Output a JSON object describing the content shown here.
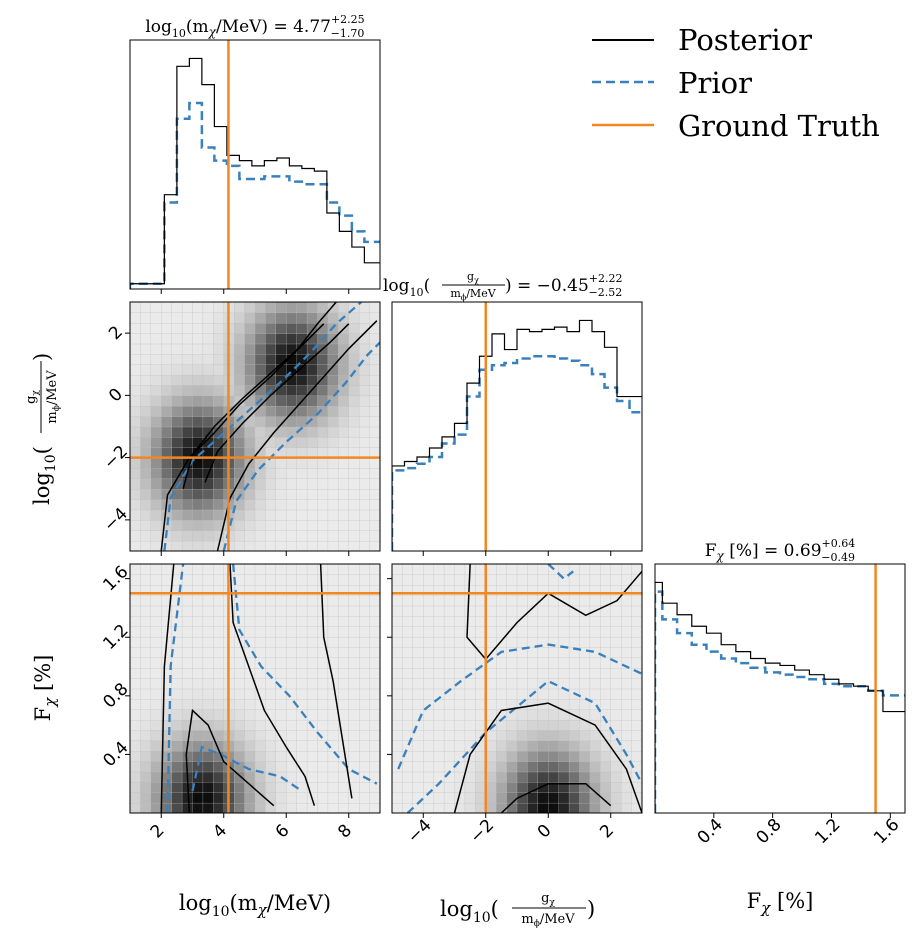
{
  "colors": {
    "posterior": "#000000",
    "prior": "#3a80bd",
    "ground_truth": "#f28722",
    "panel_edge": "#000000"
  },
  "legend": {
    "placement": "top-right",
    "items": [
      {
        "label": "Posterior",
        "style": "solid",
        "color": "#000000"
      },
      {
        "label": "Prior",
        "style": "dashed",
        "color": "#3a80bd"
      },
      {
        "label": "Ground Truth",
        "style": "solid",
        "color": "#f28722"
      }
    ]
  },
  "titles": {
    "m": {
      "left": "log",
      "sub": "10",
      "mid": "(m",
      "greek": "χ",
      "right": "/MeV) = 4.77",
      "sup": "+2.25",
      "inf": "−1.70"
    },
    "g": {
      "left": "log",
      "sub": "10",
      "frac_num": "g",
      "frac_num_sub": "χ",
      "frac_den": "m",
      "frac_den_sub": "ϕ",
      "frac_den_unit": "/MeV",
      "right": ") = −0.45",
      "sup": "+2.22",
      "inf": "−2.52"
    },
    "f": {
      "left": "F",
      "greek": "χ",
      "right": " [%] = 0.69",
      "sup": "+0.64",
      "inf": "−0.49"
    }
  },
  "axis_labels": {
    "m": {
      "left": "log",
      "sub": "10",
      "mid": "(m",
      "greek": "χ",
      "right": "/MeV)"
    },
    "g": {
      "left": "log",
      "sub": "10",
      "open": "(",
      "frac_num": "g",
      "frac_num_sub": "χ",
      "frac_den": "m",
      "frac_den_sub": "ϕ",
      "frac_den_unit": "/MeV",
      "close": ")"
    },
    "f": {
      "left": "F",
      "greek": "χ",
      "right": " [%]"
    }
  },
  "chart_data": {
    "type": "corner",
    "parameters": [
      {
        "key": "m",
        "range": [
          1,
          9
        ],
        "ticks": [
          2,
          4,
          6,
          8
        ],
        "tick_labels": [
          "2",
          "4",
          "6",
          "8"
        ],
        "truth": 4.15
      },
      {
        "key": "g",
        "range": [
          -5,
          3
        ],
        "ticks": [
          -4,
          -2,
          0,
          2
        ],
        "tick_labels": [
          "−4",
          "−2",
          "0",
          "2"
        ],
        "truth": -2.0
      },
      {
        "key": "f",
        "range": [
          0,
          1.7
        ],
        "ticks": [
          0.4,
          0.8,
          1.2,
          1.6
        ],
        "tick_labels": [
          "0.4",
          "0.8",
          "1.2",
          "1.6"
        ],
        "truth": 1.5
      }
    ],
    "histograms": {
      "m": {
        "bin_edges": [
          1.0,
          2.1,
          2.5,
          2.9,
          3.3,
          3.7,
          4.1,
          4.5,
          4.9,
          5.3,
          5.7,
          6.1,
          6.5,
          6.9,
          7.3,
          7.7,
          8.1,
          8.5,
          8.9,
          9.0
        ],
        "posterior": [
          0.02,
          0.36,
          0.85,
          0.88,
          0.78,
          0.62,
          0.51,
          0.49,
          0.47,
          0.49,
          0.5,
          0.47,
          0.46,
          0.45,
          0.29,
          0.22,
          0.16,
          0.1,
          0.1
        ],
        "prior": [
          0.02,
          0.33,
          0.65,
          0.71,
          0.54,
          0.49,
          0.47,
          0.42,
          0.42,
          0.43,
          0.43,
          0.41,
          0.4,
          0.4,
          0.33,
          0.28,
          0.22,
          0.18,
          0.18
        ]
      },
      "g": {
        "bin_edges": [
          -5.0,
          -4.6,
          -4.2,
          -3.8,
          -3.4,
          -3.0,
          -2.6,
          -2.2,
          -1.8,
          -1.4,
          -1.0,
          -0.6,
          -0.2,
          0.2,
          0.6,
          1.0,
          1.4,
          1.8,
          2.2,
          2.6,
          3.0
        ],
        "posterior": [
          0.38,
          0.4,
          0.42,
          0.46,
          0.51,
          0.57,
          0.75,
          0.87,
          0.97,
          0.9,
          0.99,
          0.98,
          0.99,
          1.0,
          0.98,
          1.03,
          0.98,
          0.91,
          0.69,
          0.69
        ],
        "prior": [
          0.36,
          0.37,
          0.39,
          0.42,
          0.48,
          0.52,
          0.69,
          0.81,
          0.83,
          0.84,
          0.86,
          0.87,
          0.87,
          0.86,
          0.85,
          0.83,
          0.79,
          0.73,
          0.67,
          0.62
        ]
      },
      "f": {
        "bin_edges": [
          0.0,
          0.05,
          0.15,
          0.25,
          0.35,
          0.45,
          0.55,
          0.65,
          0.75,
          0.85,
          0.95,
          1.05,
          1.15,
          1.25,
          1.35,
          1.45,
          1.55,
          1.65,
          1.7
        ],
        "posterior": [
          1.0,
          0.91,
          0.86,
          0.81,
          0.78,
          0.73,
          0.7,
          0.67,
          0.65,
          0.64,
          0.62,
          0.6,
          0.58,
          0.56,
          0.55,
          0.53,
          0.44,
          0.44
        ],
        "prior": [
          0.96,
          0.84,
          0.78,
          0.73,
          0.7,
          0.67,
          0.65,
          0.63,
          0.61,
          0.6,
          0.59,
          0.58,
          0.56,
          0.55,
          0.55,
          0.53,
          0.51,
          0.51
        ]
      }
    },
    "pairs": [
      {
        "x": "g_vs_m",
        "posterior_contours": [
          [
            [
              2.0,
              -5.0
            ],
            [
              2.2,
              -3.2
            ],
            [
              2.9,
              -2.0
            ],
            [
              3.7,
              -1.2
            ],
            [
              4.5,
              -0.3
            ],
            [
              5.5,
              0.6
            ],
            [
              6.3,
              1.4
            ],
            [
              7.0,
              2.3
            ],
            [
              7.6,
              3.0
            ]
          ],
          [
            [
              3.8,
              -5.0
            ],
            [
              4.2,
              -3.3
            ],
            [
              4.8,
              -2.2
            ],
            [
              5.6,
              -1.2
            ],
            [
              6.4,
              -0.3
            ],
            [
              7.2,
              0.6
            ],
            [
              8.0,
              1.5
            ],
            [
              8.9,
              2.4
            ]
          ],
          [
            [
              2.7,
              -3.0
            ],
            [
              3.0,
              -1.9
            ],
            [
              3.7,
              -1.0
            ],
            [
              4.6,
              -0.1
            ],
            [
              5.6,
              0.8
            ],
            [
              6.5,
              1.6
            ],
            [
              7.2,
              2.3
            ]
          ],
          [
            [
              3.4,
              -2.8
            ],
            [
              3.8,
              -1.8
            ],
            [
              4.6,
              -0.9
            ],
            [
              5.5,
              0.0
            ],
            [
              6.5,
              0.9
            ],
            [
              7.4,
              1.7
            ],
            [
              8.0,
              2.3
            ]
          ]
        ],
        "prior_contours": [
          [
            [
              2.1,
              -5.0
            ],
            [
              2.3,
              -3.3
            ],
            [
              3.0,
              -2.1
            ],
            [
              3.9,
              -1.3
            ],
            [
              4.9,
              -0.4
            ],
            [
              5.9,
              0.5
            ],
            [
              6.8,
              1.4
            ],
            [
              7.6,
              2.3
            ],
            [
              8.4,
              3.0
            ]
          ],
          [
            [
              4.0,
              -5.0
            ],
            [
              4.4,
              -3.4
            ],
            [
              5.1,
              -2.4
            ],
            [
              6.0,
              -1.5
            ],
            [
              7.0,
              -0.6
            ],
            [
              7.9,
              0.4
            ],
            [
              8.6,
              1.3
            ],
            [
              9.0,
              1.7
            ]
          ]
        ],
        "density_peaks": [
          [
            3.2,
            -2.0
          ],
          [
            6.2,
            1.0
          ]
        ]
      },
      {
        "x": "f_vs_m",
        "posterior_contours": [
          [
            [
              2.0,
              0.0
            ],
            [
              2.1,
              1.0
            ],
            [
              2.4,
              1.7
            ]
          ],
          [
            [
              4.2,
              1.7
            ],
            [
              4.3,
              1.3
            ],
            [
              4.8,
              1.0
            ],
            [
              5.3,
              0.7
            ],
            [
              6.0,
              0.45
            ],
            [
              6.6,
              0.25
            ],
            [
              6.9,
              0.05
            ]
          ],
          [
            [
              7.1,
              1.7
            ],
            [
              7.2,
              1.2
            ],
            [
              7.5,
              0.9
            ],
            [
              7.8,
              0.5
            ],
            [
              8.1,
              0.1
            ]
          ],
          [
            [
              2.9,
              0.0
            ],
            [
              2.8,
              0.4
            ],
            [
              3.0,
              0.7
            ],
            [
              3.5,
              0.6
            ],
            [
              4.0,
              0.35
            ],
            [
              4.8,
              0.2
            ],
            [
              5.6,
              0.05
            ]
          ]
        ],
        "prior_contours": [
          [
            [
              2.2,
              0.0
            ],
            [
              2.3,
              1.0
            ],
            [
              2.7,
              1.7
            ]
          ],
          [
            [
              4.3,
              1.7
            ],
            [
              4.5,
              1.25
            ],
            [
              5.2,
              1.0
            ],
            [
              6.1,
              0.8
            ],
            [
              7.0,
              0.55
            ],
            [
              8.0,
              0.3
            ],
            [
              8.9,
              0.2
            ]
          ],
          [
            [
              3.0,
              0.15
            ],
            [
              3.3,
              0.45
            ],
            [
              3.9,
              0.4
            ],
            [
              4.8,
              0.3
            ],
            [
              5.8,
              0.25
            ],
            [
              6.5,
              0.15
            ]
          ]
        ],
        "density_peaks": [
          [
            3.3,
            0.1
          ]
        ]
      },
      {
        "x": "f_vs_g",
        "posterior_contours": [
          [
            [
              -2.5,
              1.7
            ],
            [
              -2.6,
              1.2
            ],
            [
              -2.0,
              1.05
            ],
            [
              -1.0,
              1.3
            ],
            [
              0.0,
              1.5
            ],
            [
              1.2,
              1.35
            ],
            [
              2.2,
              1.45
            ],
            [
              3.0,
              1.65
            ]
          ],
          [
            [
              -3.0,
              0.0
            ],
            [
              -2.5,
              0.4
            ],
            [
              -1.5,
              0.7
            ],
            [
              0.0,
              0.75
            ],
            [
              1.5,
              0.6
            ],
            [
              2.5,
              0.3
            ],
            [
              3.0,
              0.0
            ]
          ],
          [
            [
              -1.5,
              0.0
            ],
            [
              -1.0,
              0.1
            ],
            [
              0.0,
              0.2
            ],
            [
              1.2,
              0.2
            ],
            [
              2.0,
              0.05
            ]
          ]
        ],
        "prior_contours": [
          [
            [
              -4.8,
              0.3
            ],
            [
              -4.0,
              0.7
            ],
            [
              -2.8,
              0.9
            ],
            [
              -1.5,
              1.1
            ],
            [
              0.0,
              1.15
            ],
            [
              1.5,
              1.1
            ],
            [
              3.0,
              0.95
            ]
          ],
          [
            [
              -4.5,
              0.0
            ],
            [
              -3.5,
              0.2
            ],
            [
              -2.0,
              0.55
            ],
            [
              0.0,
              0.9
            ],
            [
              1.5,
              0.75
            ],
            [
              2.5,
              0.4
            ],
            [
              3.0,
              0.2
            ]
          ],
          [
            [
              0.0,
              1.7
            ],
            [
              0.5,
              1.6
            ],
            [
              0.8,
              1.65
            ]
          ]
        ],
        "density_peaks": [
          [
            0.0,
            0.05
          ]
        ]
      }
    ]
  }
}
